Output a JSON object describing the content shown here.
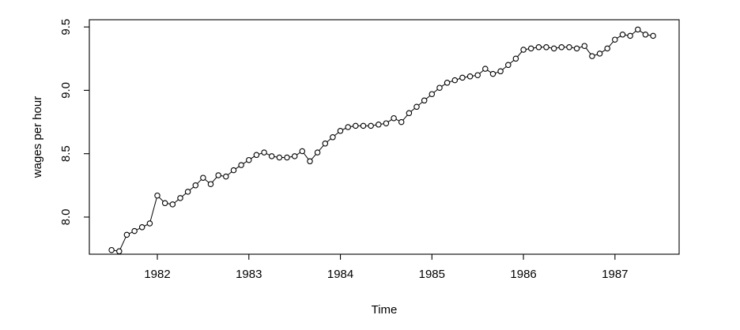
{
  "chart_data": {
    "type": "line",
    "title": "",
    "xlabel": "Time",
    "ylabel": "wages per hour",
    "x_tick_labels": [
      "1982",
      "1983",
      "1984",
      "1985",
      "1986",
      "1987"
    ],
    "x_tick_values": [
      1982,
      1983,
      1984,
      1985,
      1986,
      1987
    ],
    "y_tick_labels": [
      "8.0",
      "8.5",
      "9.0",
      "9.5"
    ],
    "y_tick_values": [
      8.0,
      8.5,
      9.0,
      9.5
    ],
    "xlim": [
      1981.257,
      1987.701
    ],
    "ylim": [
      7.707,
      9.557
    ],
    "grid": false,
    "legend_position": "none",
    "marker": "open-circle",
    "line_color": "#000000",
    "marker_stroke_color": "#000000",
    "marker_fill_color": "#ffffff",
    "background_color": "#ffffff",
    "frequency": 12,
    "x_start": 1981.5,
    "x_end": 1987.4167,
    "series": [
      {
        "name": "wages per hour",
        "values": [
          7.74,
          7.73,
          7.86,
          7.89,
          7.92,
          7.95,
          8.17,
          8.11,
          8.1,
          8.15,
          8.2,
          8.25,
          8.31,
          8.26,
          8.33,
          8.32,
          8.37,
          8.41,
          8.45,
          8.49,
          8.51,
          8.48,
          8.47,
          8.47,
          8.48,
          8.52,
          8.44,
          8.51,
          8.58,
          8.63,
          8.68,
          8.71,
          8.72,
          8.72,
          8.72,
          8.73,
          8.74,
          8.78,
          8.75,
          8.82,
          8.87,
          8.92,
          8.97,
          9.02,
          9.06,
          9.08,
          9.1,
          9.11,
          9.12,
          9.17,
          9.13,
          9.15,
          9.2,
          9.25,
          9.32,
          9.33,
          9.34,
          9.34,
          9.33,
          9.34,
          9.34,
          9.33,
          9.35,
          9.27,
          9.29,
          9.33,
          9.4,
          9.44,
          9.43,
          9.48,
          9.44,
          9.43
        ]
      }
    ]
  }
}
